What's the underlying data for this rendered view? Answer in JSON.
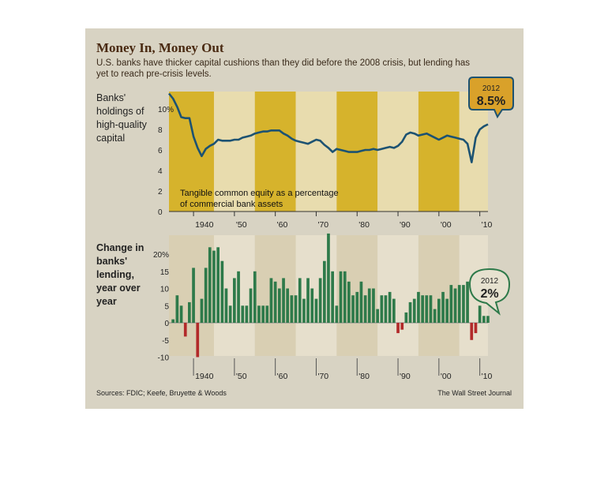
{
  "header": {
    "title": "Money In, Money Out",
    "subtitle_line1": "U.S. banks have thicker capital cushions than they did before the 2008 crisis, but lending has",
    "subtitle_line2": "yet to reach pre-crisis levels."
  },
  "footer": {
    "source": "Sources: FDIC; Keefe, Bruyette & Woods",
    "credit": "The Wall Street Journal"
  },
  "colors": {
    "background": "#d8d3c3",
    "band_gold": "#d6b32c",
    "band_light": "#e8dcae",
    "band_tan": "#d9cfb3",
    "band_lighttan": "#e6dfcc",
    "line": "#1c5272",
    "bar_positive": "#2e7a4a",
    "bar_negative": "#b22a2a",
    "callout_top_fill": "#d9a12a",
    "callout_bottom_fill": "#e6e1cf"
  },
  "chart_data": [
    {
      "type": "line",
      "side_label": [
        "Banks'",
        "holdings of",
        "high-quality",
        "capital"
      ],
      "note": [
        "Tangible common equity as a percentage",
        "of commercial bank assets"
      ],
      "yticks": [
        "10%",
        "8",
        "6",
        "4",
        "2",
        "0"
      ],
      "ytick_values": [
        10,
        8,
        6,
        4,
        2,
        0
      ],
      "ylim": [
        0,
        11
      ],
      "xlim": [
        1934,
        2012
      ],
      "xticks": [
        "1940",
        "'50",
        "'60",
        "'70",
        "'80",
        "'90",
        "'00",
        "'10"
      ],
      "xtick_values": [
        1940,
        1950,
        1960,
        1970,
        1980,
        1990,
        2000,
        2010
      ],
      "grid": false,
      "callout": {
        "year": "2012",
        "value": "8.5%"
      },
      "x": [
        1934,
        1935,
        1936,
        1937,
        1938,
        1939,
        1940,
        1941,
        1942,
        1943,
        1944,
        1945,
        1946,
        1947,
        1948,
        1949,
        1950,
        1951,
        1952,
        1953,
        1954,
        1955,
        1956,
        1957,
        1958,
        1959,
        1960,
        1961,
        1962,
        1963,
        1964,
        1965,
        1966,
        1967,
        1968,
        1969,
        1970,
        1971,
        1972,
        1973,
        1974,
        1975,
        1976,
        1977,
        1978,
        1979,
        1980,
        1981,
        1982,
        1983,
        1984,
        1985,
        1986,
        1987,
        1988,
        1989,
        1990,
        1991,
        1992,
        1993,
        1994,
        1995,
        1996,
        1997,
        1998,
        1999,
        2000,
        2001,
        2002,
        2003,
        2004,
        2005,
        2006,
        2007,
        2008,
        2009,
        2010,
        2011,
        2012
      ],
      "y": [
        11.5,
        11.0,
        10.2,
        9.2,
        9.1,
        9.1,
        7.3,
        6.2,
        5.4,
        6.1,
        6.4,
        6.6,
        7.0,
        6.9,
        6.9,
        6.9,
        7.0,
        7.0,
        7.2,
        7.3,
        7.4,
        7.6,
        7.7,
        7.8,
        7.8,
        7.9,
        7.9,
        7.9,
        7.6,
        7.4,
        7.1,
        6.9,
        6.8,
        6.7,
        6.6,
        6.8,
        7.0,
        6.9,
        6.5,
        6.2,
        5.8,
        6.1,
        6.0,
        5.9,
        5.8,
        5.8,
        5.8,
        5.9,
        6.0,
        6.0,
        6.1,
        6.0,
        6.1,
        6.2,
        6.3,
        6.2,
        6.4,
        6.8,
        7.5,
        7.7,
        7.6,
        7.4,
        7.5,
        7.6,
        7.4,
        7.2,
        7.0,
        7.2,
        7.4,
        7.3,
        7.2,
        7.1,
        7.0,
        6.6,
        4.8,
        7.2,
        8.0,
        8.3,
        8.5
      ]
    },
    {
      "type": "bar",
      "side_label": [
        "Change in",
        "banks'",
        "lending,",
        "year over",
        "year"
      ],
      "yticks": [
        "20%",
        "15",
        "10",
        "5",
        "0",
        "-5",
        "-10"
      ],
      "ytick_values": [
        20,
        15,
        10,
        5,
        0,
        -5,
        -10
      ],
      "ylim": [
        -13,
        25
      ],
      "xlim": [
        1934,
        2012
      ],
      "xticks": [
        "1940",
        "'50",
        "'60",
        "'70",
        "'80",
        "'90",
        "'00",
        "'10"
      ],
      "xtick_values": [
        1940,
        1950,
        1960,
        1970,
        1980,
        1990,
        2000,
        2010
      ],
      "grid": false,
      "callout": {
        "year": "2012",
        "value": "2%"
      },
      "x": [
        1935,
        1936,
        1937,
        1938,
        1939,
        1940,
        1941,
        1942,
        1943,
        1944,
        1945,
        1946,
        1947,
        1948,
        1949,
        1950,
        1951,
        1952,
        1953,
        1954,
        1955,
        1956,
        1957,
        1958,
        1959,
        1960,
        1961,
        1962,
        1963,
        1964,
        1965,
        1966,
        1967,
        1968,
        1969,
        1970,
        1971,
        1972,
        1973,
        1974,
        1975,
        1976,
        1977,
        1978,
        1979,
        1980,
        1981,
        1982,
        1983,
        1984,
        1985,
        1986,
        1987,
        1988,
        1989,
        1990,
        1991,
        1992,
        1993,
        1994,
        1995,
        1996,
        1997,
        1998,
        1999,
        2000,
        2001,
        2002,
        2003,
        2004,
        2005,
        2006,
        2007,
        2008,
        2009,
        2010,
        2011,
        2012
      ],
      "values": [
        1,
        8,
        5,
        -4,
        6,
        16,
        -10,
        7,
        16,
        22,
        21,
        22,
        18,
        10,
        5,
        13,
        15,
        5,
        5,
        10,
        15,
        5,
        5,
        5,
        13,
        12,
        10,
        13,
        10,
        8,
        8,
        13,
        7,
        13,
        10,
        7,
        13,
        18,
        26,
        15,
        5,
        15,
        15,
        12,
        8,
        9,
        12,
        8,
        10,
        10,
        4,
        8,
        8,
        9,
        7,
        -3,
        -2,
        3,
        6,
        7,
        9,
        8,
        8,
        8,
        4,
        7,
        9,
        7,
        11,
        10,
        11,
        11,
        12,
        -5,
        -3,
        5,
        2,
        2
      ]
    }
  ]
}
